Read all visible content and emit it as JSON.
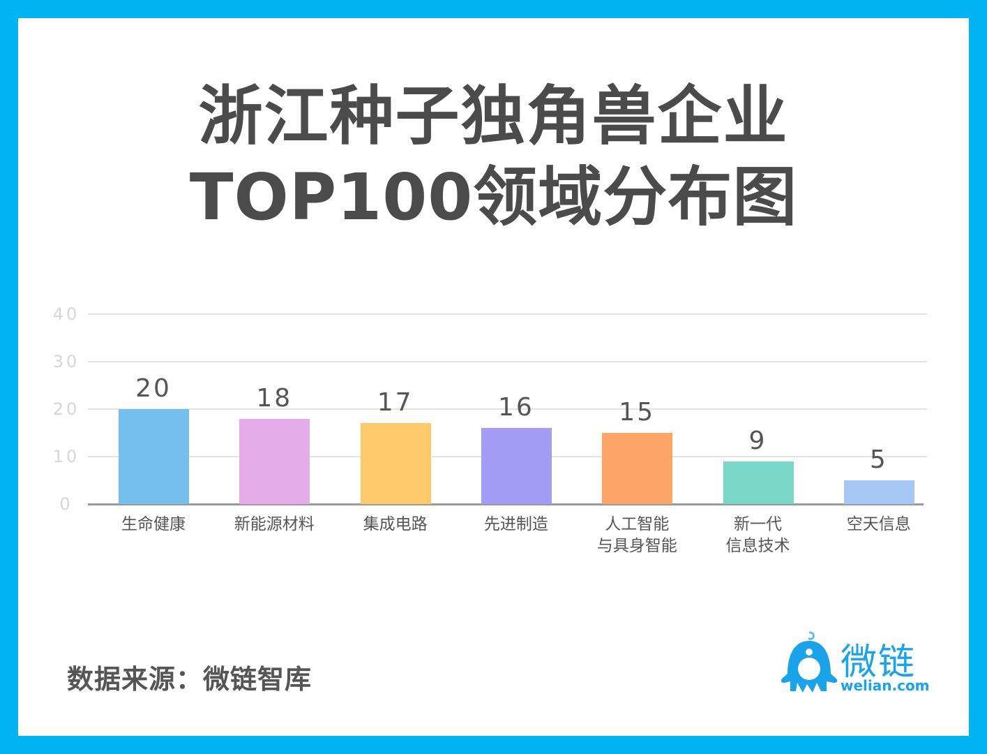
{
  "title": {
    "line1": "浙江种子独角兽企业",
    "line2": "TOP100领域分布图"
  },
  "source": "数据来源：微链智库",
  "logo": {
    "cn": "微链",
    "en": "welian.com",
    "color": "#1aa3e8"
  },
  "chart_data": {
    "type": "bar",
    "title": "浙江种子独角兽企业TOP100领域分布图",
    "xlabel": "",
    "ylabel": "",
    "ylim": [
      0,
      40
    ],
    "yticks": [
      0,
      10,
      20,
      30,
      40
    ],
    "grid": true,
    "legend": "none",
    "categories": [
      "生命健康",
      "新能源材料",
      "集成电路",
      "先进制造",
      "人工智能与具身智能",
      "新一代信息技术",
      "空天信息"
    ],
    "category_lines": [
      [
        "生命健康"
      ],
      [
        "新能源材料"
      ],
      [
        "集成电路"
      ],
      [
        "先进制造"
      ],
      [
        "人工智能",
        "与具身智能"
      ],
      [
        "新一代",
        "信息技术"
      ],
      [
        "空天信息"
      ]
    ],
    "values": [
      20,
      18,
      17,
      16,
      15,
      9,
      5
    ],
    "value_labels": [
      "20",
      "18",
      "17",
      "16",
      "15",
      "9",
      "5"
    ],
    "colors": [
      "#74bfec",
      "#e4ace9",
      "#fdc96b",
      "#a59cf6",
      "#fda568",
      "#7ad7c8",
      "#a6c6f6"
    ]
  }
}
